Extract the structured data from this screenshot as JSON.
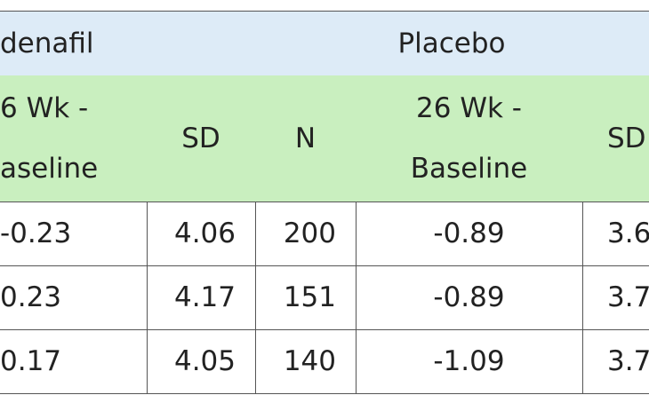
{
  "table": {
    "groups": [
      "denafil",
      "Placebo"
    ],
    "columns": [
      [
        "6 Wk -",
        "aseline"
      ],
      "SD",
      "N",
      [
        "26 Wk -",
        "Baseline"
      ],
      "SD"
    ],
    "rows": [
      [
        "-0.23",
        "4.06",
        "200",
        "-0.89",
        "3.6"
      ],
      [
        "0.23",
        "4.17",
        "151",
        "-0.89",
        "3.7"
      ],
      [
        "0.17",
        "4.05",
        "140",
        "-1.09",
        "3.7"
      ]
    ]
  }
}
